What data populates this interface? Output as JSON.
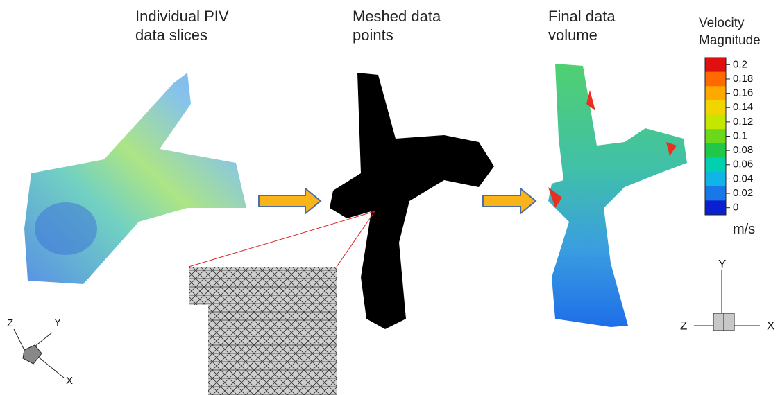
{
  "panels": [
    {
      "title": "Individual PIV data slices"
    },
    {
      "title": "Meshed data points"
    },
    {
      "title": "Final data volume"
    }
  ],
  "colorbar": {
    "title": "Velocity Magnitude",
    "ticks": [
      0.2,
      0.18,
      0.16,
      0.14,
      0.12,
      0.1,
      0.08,
      0.06,
      0.04,
      0.02,
      0
    ],
    "colors": [
      "#e01010",
      "#ff6a00",
      "#ffa800",
      "#f2d400",
      "#c4e600",
      "#6cd81c",
      "#20c848",
      "#00d0b0",
      "#10b4e8",
      "#1878e8",
      "#0a20d0"
    ],
    "unit": "m/s"
  },
  "axes_left": [
    "Z",
    "Y",
    "X"
  ],
  "axes_right": [
    "Y",
    "Z",
    "X"
  ]
}
